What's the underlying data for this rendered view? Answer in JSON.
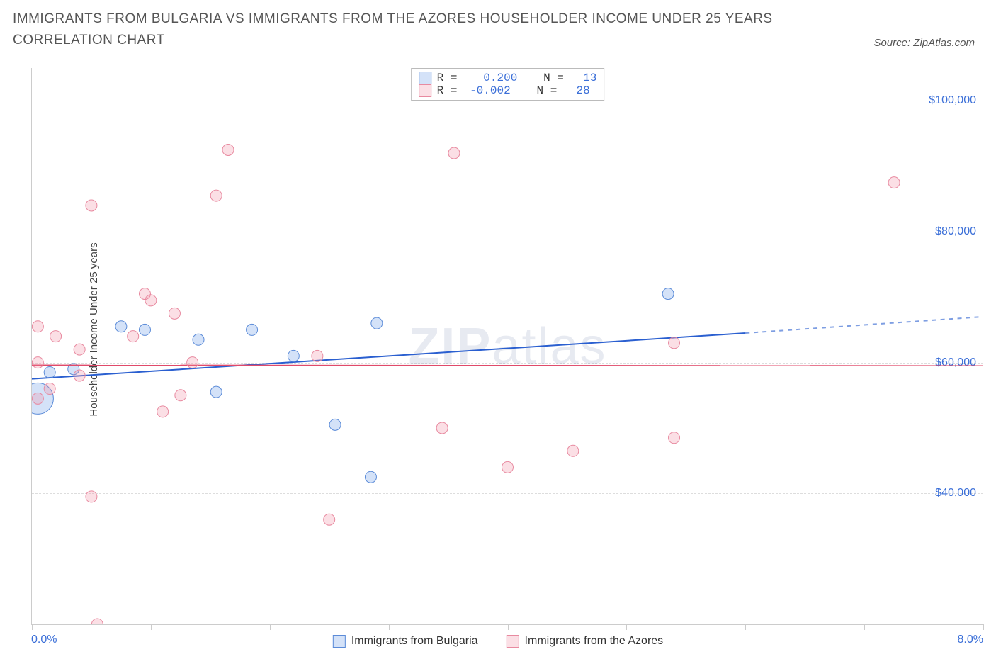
{
  "title": "IMMIGRANTS FROM BULGARIA VS IMMIGRANTS FROM THE AZORES HOUSEHOLDER INCOME UNDER 25 YEARS CORRELATION CHART",
  "source_label": "Source: ZipAtlas.com",
  "ylabel": "Householder Income Under 25 years",
  "watermark_a": "ZIP",
  "watermark_b": "atlas",
  "chart": {
    "type": "scatter",
    "xlim": [
      0.0,
      8.0
    ],
    "ylim": [
      20000,
      105000
    ],
    "x_min_label": "0.0%",
    "x_max_label": "8.0%",
    "x_ticks_at": [
      0.0,
      1.0,
      2.0,
      3.0,
      4.0,
      5.0,
      6.0,
      7.0,
      8.0
    ],
    "y_gridlines": [
      {
        "value": 40000,
        "label": "$40,000"
      },
      {
        "value": 60000,
        "label": "$60,000"
      },
      {
        "value": 80000,
        "label": "$80,000"
      },
      {
        "value": 100000,
        "label": "$100,000"
      }
    ],
    "background_color": "#ffffff",
    "grid_color": "#dddddd",
    "axis_color": "#cccccc",
    "tick_label_color": "#3b6fd8",
    "series": [
      {
        "key": "bulgaria",
        "label": "Immigrants from Bulgaria",
        "fill": "rgba(100,150,230,0.28)",
        "stroke": "#5b8bd8",
        "line_color": "#2a5fd0",
        "line_width": 2,
        "R": "0.200",
        "N": "13",
        "points": [
          {
            "x": 0.05,
            "y": 54500,
            "r": 22
          },
          {
            "x": 0.15,
            "y": 58500,
            "r": 8
          },
          {
            "x": 0.75,
            "y": 65500,
            "r": 8
          },
          {
            "x": 0.95,
            "y": 65000,
            "r": 8
          },
          {
            "x": 0.35,
            "y": 59000,
            "r": 8
          },
          {
            "x": 1.4,
            "y": 63500,
            "r": 8
          },
          {
            "x": 1.55,
            "y": 55500,
            "r": 8
          },
          {
            "x": 1.85,
            "y": 65000,
            "r": 8
          },
          {
            "x": 2.2,
            "y": 61000,
            "r": 8
          },
          {
            "x": 2.55,
            "y": 50500,
            "r": 8
          },
          {
            "x": 2.9,
            "y": 66000,
            "r": 8
          },
          {
            "x": 2.85,
            "y": 42500,
            "r": 8
          },
          {
            "x": 5.35,
            "y": 70500,
            "r": 8
          }
        ],
        "trend": {
          "x1": 0.0,
          "y1": 57500,
          "x2": 6.0,
          "y2": 64500,
          "x3": 8.0,
          "y3": 67000
        }
      },
      {
        "key": "azores",
        "label": "Immigrants from the Azores",
        "fill": "rgba(240,140,160,0.28)",
        "stroke": "#e88aa0",
        "line_color": "#e04a6a",
        "line_width": 1.5,
        "R": "-0.002",
        "N": "28",
        "points": [
          {
            "x": 0.05,
            "y": 65500,
            "r": 8
          },
          {
            "x": 0.05,
            "y": 60000,
            "r": 8
          },
          {
            "x": 0.2,
            "y": 64000,
            "r": 8
          },
          {
            "x": 0.15,
            "y": 56000,
            "r": 8
          },
          {
            "x": 0.4,
            "y": 58000,
            "r": 8
          },
          {
            "x": 0.5,
            "y": 39500,
            "r": 8
          },
          {
            "x": 0.5,
            "y": 84000,
            "r": 8
          },
          {
            "x": 0.4,
            "y": 62000,
            "r": 8
          },
          {
            "x": 0.55,
            "y": 20000,
            "r": 8
          },
          {
            "x": 0.85,
            "y": 64000,
            "r": 8
          },
          {
            "x": 0.95,
            "y": 70500,
            "r": 8
          },
          {
            "x": 1.0,
            "y": 69500,
            "r": 8
          },
          {
            "x": 1.1,
            "y": 52500,
            "r": 8
          },
          {
            "x": 1.2,
            "y": 67500,
            "r": 8
          },
          {
            "x": 1.25,
            "y": 55000,
            "r": 8
          },
          {
            "x": 1.35,
            "y": 60000,
            "r": 8
          },
          {
            "x": 1.55,
            "y": 85500,
            "r": 8
          },
          {
            "x": 1.65,
            "y": 92500,
            "r": 8
          },
          {
            "x": 2.4,
            "y": 61000,
            "r": 8
          },
          {
            "x": 2.5,
            "y": 36000,
            "r": 8
          },
          {
            "x": 3.45,
            "y": 50000,
            "r": 8
          },
          {
            "x": 3.55,
            "y": 92000,
            "r": 8
          },
          {
            "x": 4.0,
            "y": 44000,
            "r": 8
          },
          {
            "x": 4.55,
            "y": 46500,
            "r": 8
          },
          {
            "x": 5.4,
            "y": 48500,
            "r": 8
          },
          {
            "x": 5.4,
            "y": 63000,
            "r": 8
          },
          {
            "x": 7.25,
            "y": 87500,
            "r": 8
          },
          {
            "x": 0.05,
            "y": 54500,
            "r": 8
          }
        ],
        "trend": {
          "x1": 0.0,
          "y1": 59600,
          "x2": 8.0,
          "y2": 59500
        }
      }
    ]
  }
}
